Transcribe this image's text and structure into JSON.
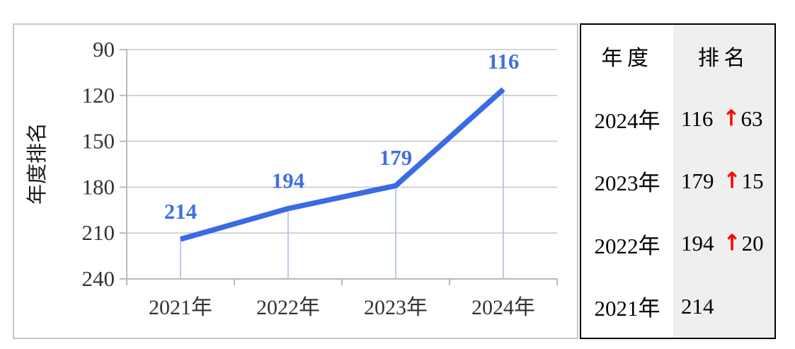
{
  "chart_data": {
    "type": "line",
    "title": "",
    "ylabel": "年度排名",
    "categories": [
      "2021年",
      "2022年",
      "2023年",
      "2024年"
    ],
    "series": [
      {
        "name": "年度排名",
        "values": [
          214,
          194,
          179,
          116
        ]
      }
    ],
    "data_labels": [
      "214",
      "194",
      "179",
      "116"
    ],
    "y_axis": {
      "min": 90,
      "max": 240,
      "ticks": [
        90,
        120,
        150,
        180,
        210,
        240
      ],
      "inverted": true,
      "tick_labels": [
        "90",
        "120",
        "150",
        "180",
        "210",
        "240"
      ]
    },
    "grid": true,
    "legend": "none",
    "annotations": "drop lines from each data point to the x-axis"
  },
  "table": {
    "headers": [
      "年度",
      "排名"
    ],
    "rows": [
      {
        "year": "2024年",
        "rank": "116",
        "arrow": "↑",
        "delta": "63"
      },
      {
        "year": "2023年",
        "rank": "179",
        "arrow": "↑",
        "delta": "15"
      },
      {
        "year": "2022年",
        "rank": "194",
        "arrow": "↑",
        "delta": "20"
      },
      {
        "year": "2021年",
        "rank": "214"
      }
    ]
  },
  "colors": {
    "line": "#3a6ae4",
    "label": "#4070e0",
    "grid": "#c9c9c9",
    "axis": "#b9b9b9",
    "drop": "#a8bdf0",
    "tick_text": "#333333",
    "arrow": "#ff0000",
    "table_border": "#000000",
    "panel_border": "#c8c8c8",
    "rank_col_bg": "#efefef"
  }
}
